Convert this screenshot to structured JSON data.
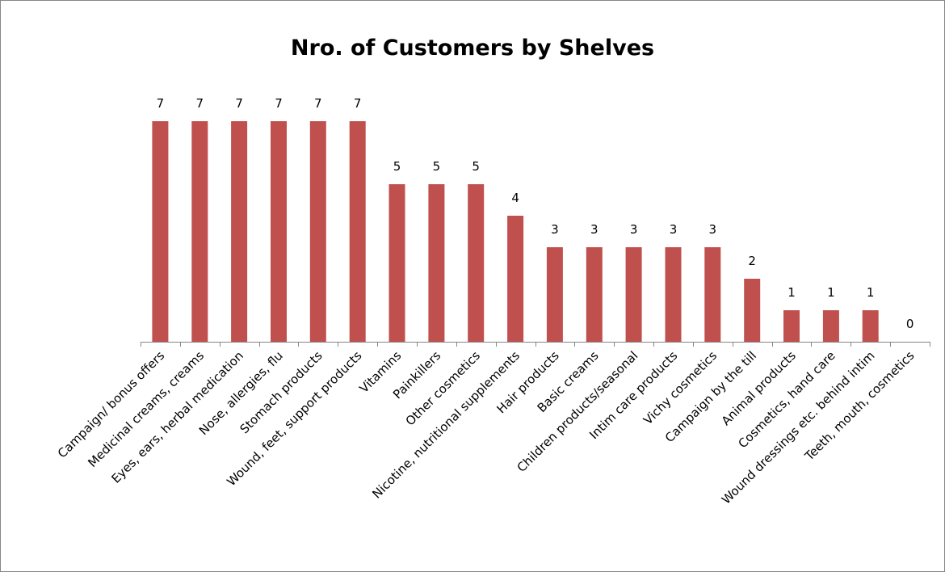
{
  "chart_data": {
    "type": "bar",
    "title": "Nro. of Customers by Shelves",
    "xlabel": "",
    "ylabel": "",
    "categories": [
      "Campaign/ bonus offers",
      "Medicinal creams, creams",
      "Eyes, ears, herbal medication",
      "Nose, allergies, flu",
      "Stomach products",
      "Wound, feet, support products",
      "Vitamins",
      "Painkillers",
      "Other cosmetics",
      "Nicotine, nutritional supplements",
      "Hair products",
      "Basic creams",
      "Children products/seasonal",
      "Intim care products",
      "Vichy cosmetics",
      "Campaign by the till",
      "Animal products",
      "Cosmetics, hand care",
      "Wound dressings etc. behind intim",
      "Teeth, mouth, cosmetics"
    ],
    "values": [
      7,
      7,
      7,
      7,
      7,
      7,
      5,
      5,
      5,
      4,
      3,
      3,
      3,
      3,
      3,
      2,
      1,
      1,
      1,
      0
    ],
    "data_labels": [
      "7",
      "7",
      "7",
      "7",
      "7",
      "7",
      "5",
      "5",
      "5",
      "4",
      "3",
      "3",
      "3",
      "3",
      "3",
      "2",
      "1",
      "1",
      "1",
      "0"
    ],
    "ylim": [
      0,
      7
    ],
    "grid": false,
    "legend": "none",
    "bar_color": "#c0504d",
    "axis_color": "#868686"
  }
}
